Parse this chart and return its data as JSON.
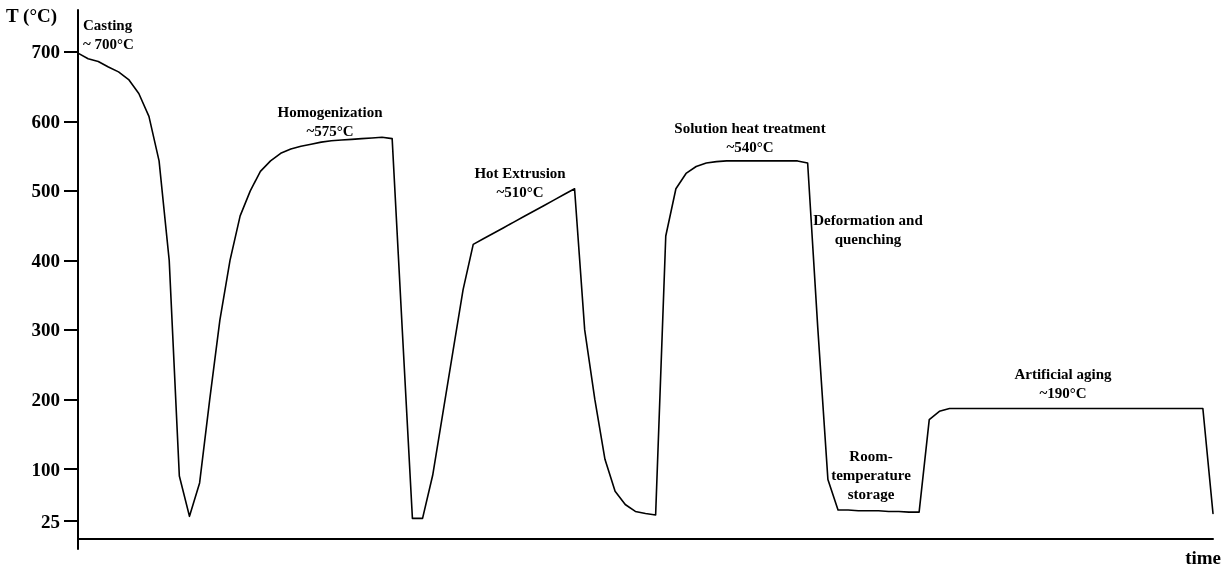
{
  "chart_data": {
    "type": "line",
    "xlabel": "time",
    "ylabel": "T (°C)",
    "categories": [
      null,
      null,
      null,
      null,
      null,
      null,
      null,
      null,
      null,
      null,
      null,
      null,
      null,
      null,
      null,
      null,
      null,
      null,
      null,
      null,
      null,
      null,
      null,
      null,
      null,
      null,
      null,
      null,
      null,
      null,
      null,
      null,
      null,
      null,
      null,
      null,
      null,
      null,
      null,
      null,
      null,
      null,
      null,
      null,
      null,
      null,
      null,
      null,
      null,
      null,
      null,
      null,
      null,
      null,
      null,
      null,
      null,
      null,
      null,
      null,
      null,
      null,
      null,
      null,
      null,
      null,
      null,
      null,
      null,
      null,
      null,
      null,
      null,
      null,
      null,
      null,
      null,
      null,
      null,
      null,
      null,
      null,
      null,
      null,
      null,
      null,
      null,
      null,
      null,
      null,
      null,
      null,
      null,
      null,
      null,
      null,
      null,
      null,
      null,
      null,
      null,
      null,
      null,
      null,
      null,
      null,
      null,
      null,
      null,
      null,
      null,
      null,
      null
    ],
    "series": [
      {
        "color": "#000000",
        "values": [
          698,
          690,
          686,
          678,
          671,
          660,
          640,
          607,
          543,
          400,
          90,
          32,
          80,
          200,
          314,
          400,
          464,
          500,
          528,
          543,
          554,
          560,
          564,
          567,
          570,
          572,
          573,
          574,
          575,
          576,
          577,
          575,
          300,
          29,
          29,
          91,
          180,
          269,
          358,
          423,
          431,
          439,
          447,
          455,
          463,
          471,
          479,
          487,
          495,
          503,
          300,
          200,
          114,
          68,
          49,
          39,
          36,
          34,
          435,
          503,
          525,
          535,
          540,
          542,
          543,
          543,
          543,
          543,
          543,
          543,
          543,
          543,
          540,
          303,
          85,
          41,
          41,
          40,
          40,
          40,
          39,
          39,
          38,
          38,
          171,
          183,
          187,
          187,
          187,
          187,
          187,
          187,
          187,
          187,
          187,
          187,
          187,
          187,
          187,
          187,
          187,
          187,
          187,
          187,
          187,
          187,
          187,
          187,
          187,
          187,
          187,
          187,
          36
        ]
      }
    ],
    "ylim": [
      -15,
      760
    ],
    "yticks": [
      25,
      100,
      200,
      300,
      400,
      500,
      600,
      700
    ],
    "tick_labels": "y",
    "grid": false,
    "marker": "none",
    "line_style": "solid",
    "annotations": [
      "Casting\n~ 700°C",
      "Homogenization\n~575°C",
      "Hot Extrusion\n~510°C",
      "Solution heat treatment\n~540°C",
      "Deformation and\nquenching",
      "Room-\ntemperature\nstorage",
      "Artificial aging\n~190°C"
    ]
  }
}
